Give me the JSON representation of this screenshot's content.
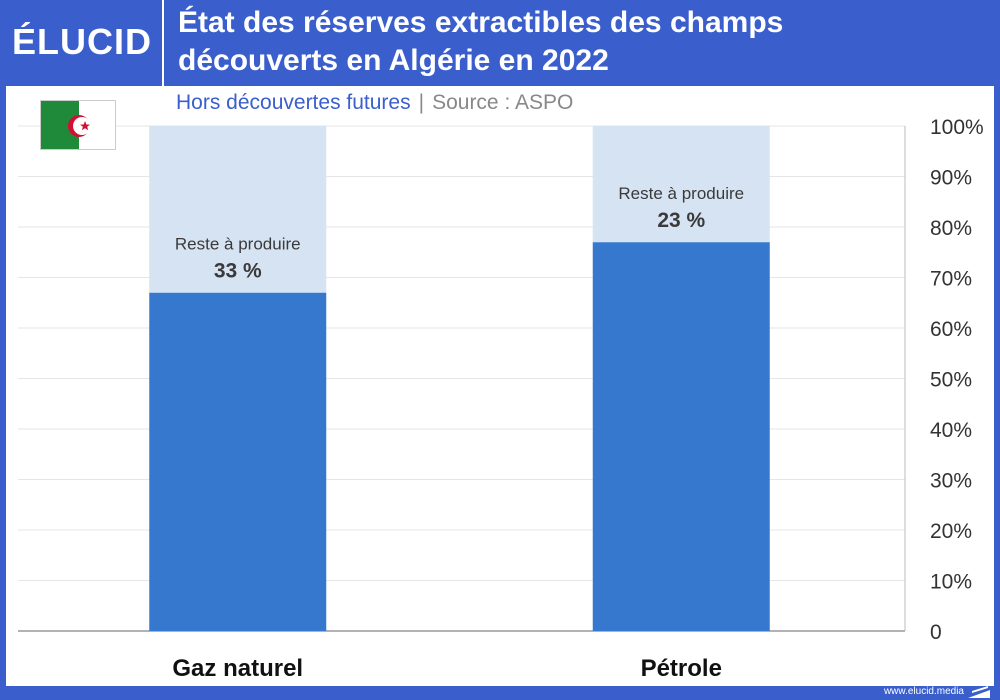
{
  "brand": "ÉLUCID",
  "title_line1": "État des réserves extractibles des champs",
  "title_line2": "découverts en Algérie en 2022",
  "subtitle": "Hors découvertes futures",
  "separator": "|",
  "source": "Source : ASPO",
  "footer": "www.elucid.media",
  "colors": {
    "produced": "#3578cd",
    "remaining": "#d6e3f3",
    "background": "#3a5fcd"
  },
  "chart_data": {
    "type": "bar",
    "stacked": true,
    "categories": [
      "Gaz naturel",
      "Pétrole"
    ],
    "series": [
      {
        "values": [
          67,
          77
        ]
      },
      {
        "name": "Reste à produire",
        "values": [
          33,
          23
        ]
      }
    ],
    "data_labels": [
      {
        "text": "Reste à produire",
        "value": "33 %"
      },
      {
        "text": "Reste à produire",
        "value": "23 %"
      }
    ],
    "yticks": [
      "0",
      "10%",
      "20%",
      "30%",
      "40%",
      "50%",
      "60%",
      "70%",
      "80%",
      "90%",
      "100%"
    ],
    "ylim": [
      0,
      100
    ],
    "yaxis_position": "right",
    "grid": true
  }
}
